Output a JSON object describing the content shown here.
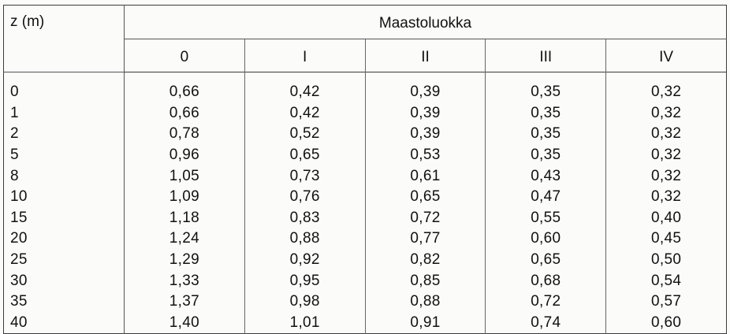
{
  "table": {
    "z_header": "z (m)",
    "group_header": "Maastoluokka",
    "classes": [
      "0",
      "I",
      "II",
      "III",
      "IV"
    ],
    "rows": [
      {
        "z": "0",
        "values": [
          "0,66",
          "0,42",
          "0,39",
          "0,35",
          "0,32"
        ]
      },
      {
        "z": "1",
        "values": [
          "0,66",
          "0,42",
          "0,39",
          "0,35",
          "0,32"
        ]
      },
      {
        "z": "2",
        "values": [
          "0,78",
          "0,52",
          "0,39",
          "0,35",
          "0,32"
        ]
      },
      {
        "z": "5",
        "values": [
          "0,96",
          "0,65",
          "0,53",
          "0,35",
          "0,32"
        ]
      },
      {
        "z": "8",
        "values": [
          "1,05",
          "0,73",
          "0,61",
          "0,43",
          "0,32"
        ]
      },
      {
        "z": "10",
        "values": [
          "1,09",
          "0,76",
          "0,65",
          "0,47",
          "0,32"
        ]
      },
      {
        "z": "15",
        "values": [
          "1,18",
          "0,83",
          "0,72",
          "0,55",
          "0,40"
        ]
      },
      {
        "z": "20",
        "values": [
          "1,24",
          "0,88",
          "0,77",
          "0,60",
          "0,45"
        ]
      },
      {
        "z": "25",
        "values": [
          "1,29",
          "0,92",
          "0,82",
          "0,65",
          "0,50"
        ]
      },
      {
        "z": "30",
        "values": [
          "1,33",
          "0,95",
          "0,85",
          "0,68",
          "0,54"
        ]
      },
      {
        "z": "35",
        "values": [
          "1,37",
          "0,98",
          "0,88",
          "0,72",
          "0,57"
        ]
      },
      {
        "z": "40",
        "values": [
          "1,40",
          "1,01",
          "0,91",
          "0,74",
          "0,60"
        ]
      }
    ]
  }
}
